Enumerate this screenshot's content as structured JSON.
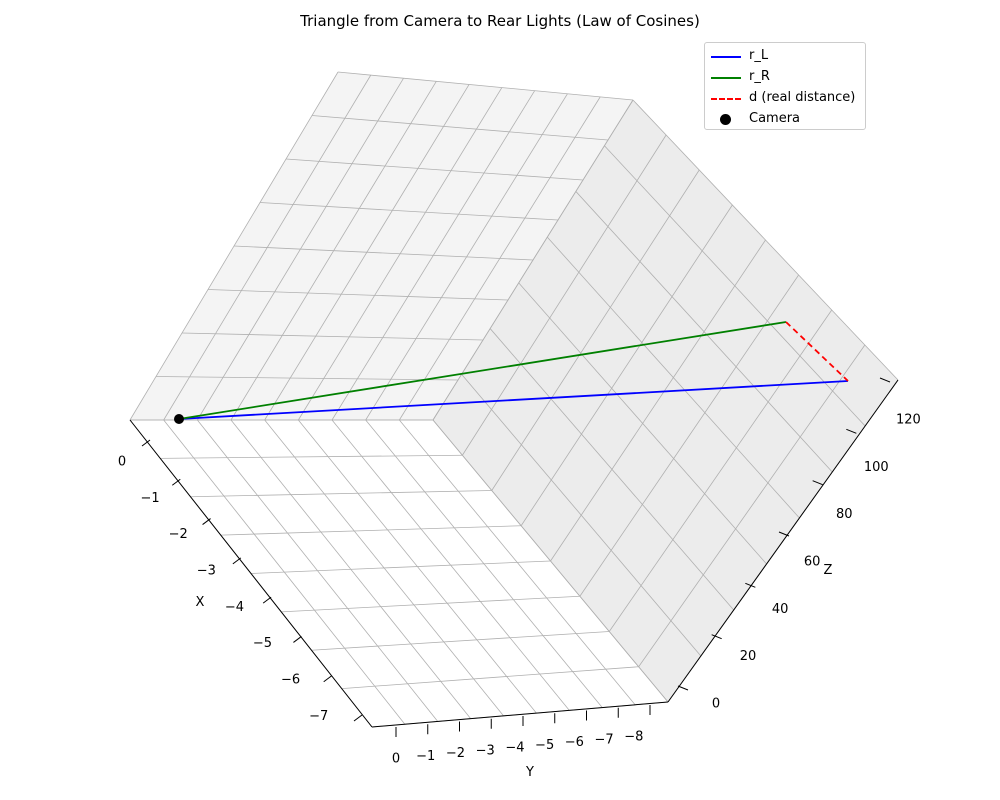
{
  "chart_data": {
    "type": "line3d",
    "title": "Triangle from Camera to Rear Lights (Law of Cosines)",
    "axes": {
      "x": {
        "label": "X",
        "ticks": [
          "0",
          "−1",
          "−2",
          "−3",
          "−4",
          "−5",
          "−6",
          "−7"
        ]
      },
      "y": {
        "label": "Y",
        "ticks": [
          "0",
          "−1",
          "−2",
          "−3",
          "−4",
          "−5",
          "−6",
          "−7",
          "−8"
        ]
      },
      "z": {
        "label": "Z",
        "ticks": [
          "0",
          "20",
          "40",
          "60",
          "80",
          "100",
          "120"
        ]
      }
    },
    "grid": true,
    "legend": {
      "position": "upper right"
    },
    "series": [
      {
        "name": "r_L",
        "color": "#0000ff",
        "style": "solid"
      },
      {
        "name": "r_R",
        "color": "#008000",
        "style": "solid"
      },
      {
        "name": "d (real distance)",
        "color": "#ff0000",
        "style": "dashed"
      },
      {
        "name": "Camera",
        "color": "#000000",
        "style": "marker"
      }
    ]
  }
}
